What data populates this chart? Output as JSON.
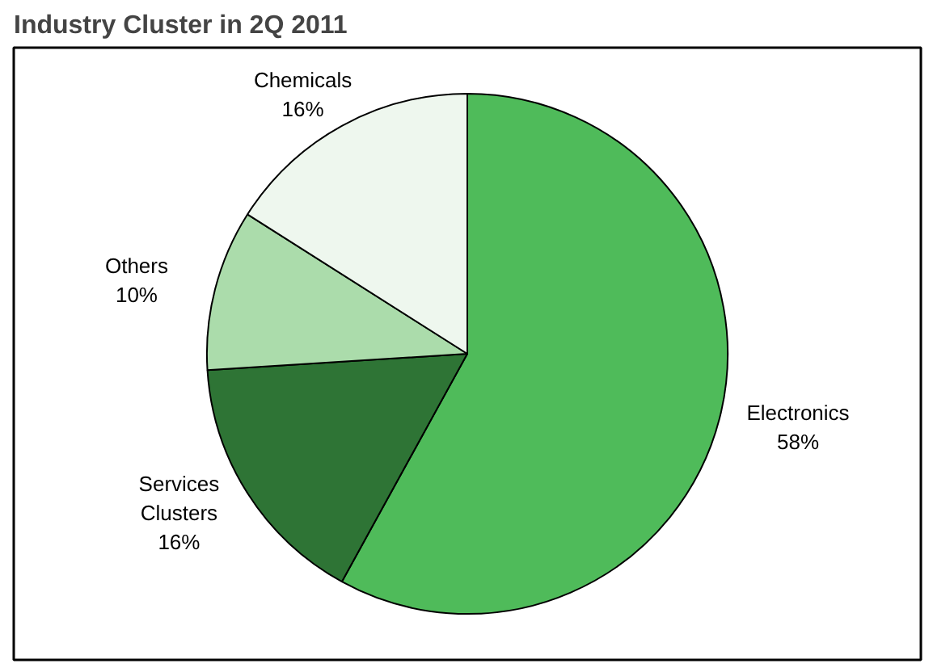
{
  "chart_data": {
    "type": "pie",
    "title": "Industry Cluster in 2Q 2011",
    "categories": [
      "Electronics",
      "Services Clusters",
      "Others",
      "Chemicals"
    ],
    "values": [
      58,
      16,
      10,
      16
    ],
    "colors": [
      "#4fbb5a",
      "#2e7435",
      "#abdcab",
      "#eef7ee"
    ],
    "value_labels": [
      "58%",
      "16%",
      "10%",
      "16%"
    ]
  }
}
